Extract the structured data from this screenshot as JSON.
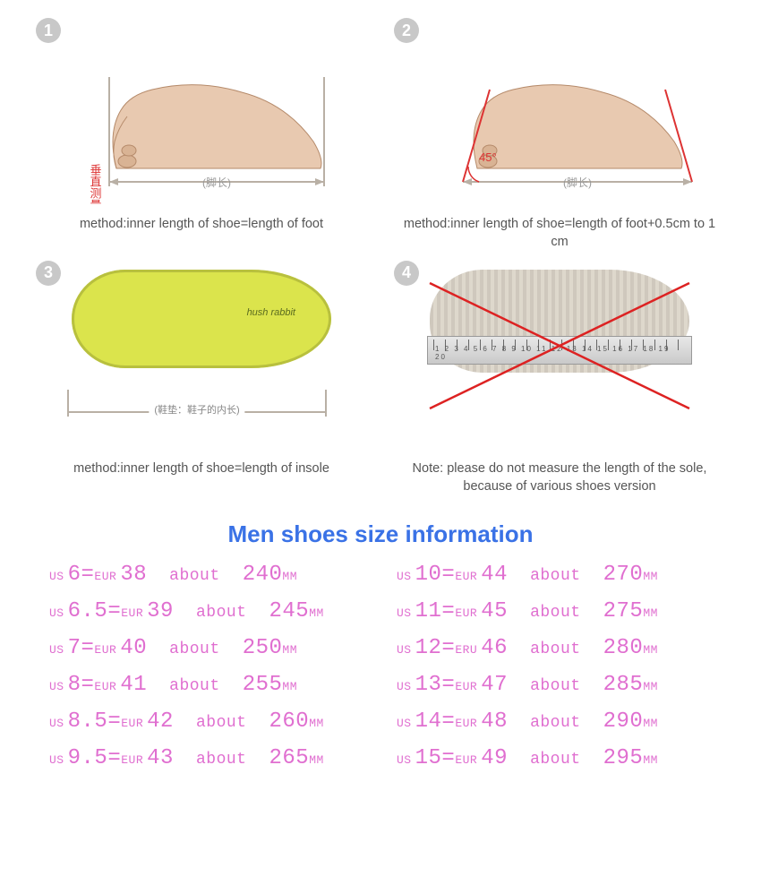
{
  "panels": [
    {
      "num": "1",
      "caption": "method:inner length of shoe=length of foot",
      "foot_label": "(脚长)",
      "side_label": "垂直测量",
      "angle": ""
    },
    {
      "num": "2",
      "caption": "method:inner length of shoe=length of foot+0.5cm to 1 cm",
      "foot_label": "(脚长)",
      "side_label": "",
      "angle": "45°"
    },
    {
      "num": "3",
      "caption": "method:inner length of shoe=length of insole",
      "insole_brand": "hush rabbit",
      "dim_text": "(鞋垫：鞋子的内长)"
    },
    {
      "num": "4",
      "caption": "Note: please do not measure the length of the sole, because of various shoes version",
      "ruler_nums": "1 2 3 4 5 6 7 8 9 10 11 12 13 14 15 16 17 18 19 20"
    }
  ],
  "section_title": "Men shoes size information",
  "colors": {
    "accent": "#e06fd0",
    "title": "#3a72e6",
    "badge": "#c8c8c8"
  },
  "sizes_left": [
    {
      "us": "6",
      "eur_label": "EUR",
      "eur": "38",
      "mm": "240"
    },
    {
      "us": "6.5",
      "eur_label": "EUR",
      "eur": "39",
      "mm": "245"
    },
    {
      "us": "7",
      "eur_label": "EUR",
      "eur": "40",
      "mm": "250"
    },
    {
      "us": "8",
      "eur_label": "EUR",
      "eur": "41",
      "mm": "255"
    },
    {
      "us": "8.5",
      "eur_label": "EUR",
      "eur": "42",
      "mm": "260"
    },
    {
      "us": "9.5",
      "eur_label": "EUR",
      "eur": "43",
      "mm": "265"
    }
  ],
  "sizes_right": [
    {
      "us": "10",
      "eur_label": "EUR",
      "eur": "44",
      "mm": "270"
    },
    {
      "us": "11",
      "eur_label": "EUR",
      "eur": "45",
      "mm": "275"
    },
    {
      "us": "12",
      "eur_label": "ERU",
      "eur": "46",
      "mm": "280"
    },
    {
      "us": "13",
      "eur_label": "EUR",
      "eur": "47",
      "mm": "285"
    },
    {
      "us": "14",
      "eur_label": "EUR",
      "eur": "48",
      "mm": "290"
    },
    {
      "us": "15",
      "eur_label": "EUR",
      "eur": "49",
      "mm": "295"
    }
  ],
  "labels": {
    "us_prefix": "US",
    "eq": "=",
    "about": "about",
    "mm_suffix": "MM"
  }
}
